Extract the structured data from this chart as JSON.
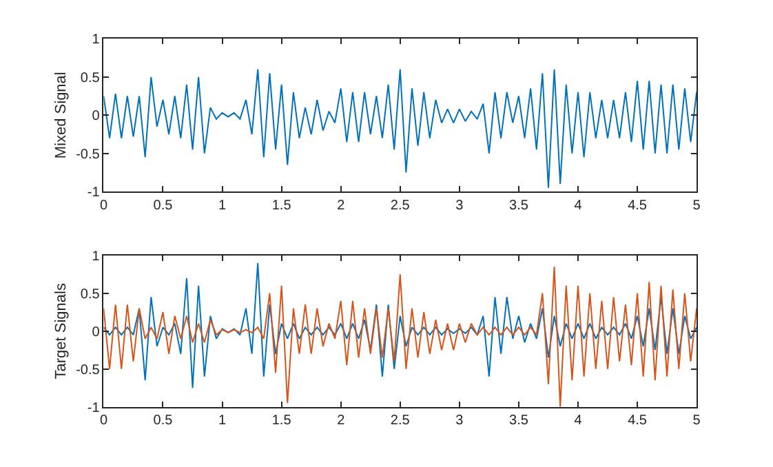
{
  "chart_data": [
    {
      "type": "line",
      "ylabel": "Mixed Signal",
      "xlim": [
        0,
        5
      ],
      "ylim": [
        -1,
        1
      ],
      "xticks": [
        0,
        0.5,
        1,
        1.5,
        2,
        2.5,
        3,
        3.5,
        4,
        4.5,
        5
      ],
      "yticks": [
        -1,
        -0.5,
        0,
        0.5,
        1
      ],
      "x": [
        0,
        0.05,
        0.1,
        0.15,
        0.2,
        0.25,
        0.3,
        0.35,
        0.4,
        0.45,
        0.5,
        0.55,
        0.6,
        0.65,
        0.7,
        0.75,
        0.8,
        0.85,
        0.9,
        0.95,
        1,
        1.05,
        1.1,
        1.15,
        1.2,
        1.25,
        1.3,
        1.35,
        1.4,
        1.45,
        1.5,
        1.55,
        1.6,
        1.65,
        1.7,
        1.75,
        1.8,
        1.85,
        1.9,
        1.95,
        2,
        2.05,
        2.1,
        2.15,
        2.2,
        2.25,
        2.3,
        2.35,
        2.4,
        2.45,
        2.5,
        2.55,
        2.6,
        2.65,
        2.7,
        2.75,
        2.8,
        2.85,
        2.9,
        2.95,
        3,
        3.05,
        3.1,
        3.15,
        3.2,
        3.25,
        3.3,
        3.35,
        3.4,
        3.45,
        3.5,
        3.55,
        3.6,
        3.65,
        3.7,
        3.75,
        3.8,
        3.85,
        3.9,
        3.95,
        4,
        4.05,
        4.1,
        4.15,
        4.2,
        4.25,
        4.3,
        4.35,
        4.4,
        4.45,
        4.5,
        4.55,
        4.6,
        4.65,
        4.7,
        4.75,
        4.8,
        4.85,
        4.9,
        4.95,
        5
      ],
      "series": [
        {
          "color": "#0072bd",
          "values": [
            0.25,
            -0.3,
            0.28,
            -0.3,
            0.25,
            -0.28,
            0.25,
            -0.55,
            0.5,
            -0.15,
            0.2,
            -0.25,
            0.25,
            -0.3,
            0.4,
            -0.45,
            0.5,
            -0.5,
            0.1,
            -0.05,
            0.03,
            -0.02,
            0.03,
            -0.05,
            0.2,
            -0.25,
            0.6,
            -0.55,
            0.55,
            -0.45,
            0.4,
            -0.65,
            0.3,
            -0.3,
            0.1,
            -0.25,
            0.2,
            -0.2,
            0.05,
            -0.1,
            0.35,
            -0.35,
            0.3,
            -0.35,
            0.3,
            -0.25,
            0.25,
            -0.3,
            0.4,
            -0.45,
            0.6,
            -0.75,
            0.35,
            -0.4,
            0.3,
            -0.3,
            0.2,
            -0.1,
            0.08,
            -0.1,
            0.08,
            -0.08,
            0.05,
            -0.05,
            0.15,
            -0.5,
            0.3,
            -0.3,
            0.3,
            -0.1,
            0.25,
            -0.3,
            0.35,
            -0.45,
            0.55,
            -0.95,
            0.6,
            -0.9,
            0.4,
            -0.5,
            0.3,
            -0.55,
            0.3,
            -0.3,
            0.2,
            -0.3,
            0.2,
            -0.3,
            0.3,
            -0.35,
            0.45,
            -0.45,
            0.45,
            -0.5,
            0.4,
            -0.5,
            0.4,
            -0.45,
            0.35,
            -0.35,
            0.3
          ]
        }
      ]
    },
    {
      "type": "line",
      "ylabel": "Target Signals",
      "xlim": [
        0,
        5
      ],
      "ylim": [
        -1,
        1
      ],
      "xticks": [
        0,
        0.5,
        1,
        1.5,
        2,
        2.5,
        3,
        3.5,
        4,
        4.5,
        5
      ],
      "yticks": [
        -1,
        -0.5,
        0,
        0.5,
        1
      ],
      "x": [
        0,
        0.05,
        0.1,
        0.15,
        0.2,
        0.25,
        0.3,
        0.35,
        0.4,
        0.45,
        0.5,
        0.55,
        0.6,
        0.65,
        0.7,
        0.75,
        0.8,
        0.85,
        0.9,
        0.95,
        1,
        1.05,
        1.1,
        1.15,
        1.2,
        1.25,
        1.3,
        1.35,
        1.4,
        1.45,
        1.5,
        1.55,
        1.6,
        1.65,
        1.7,
        1.75,
        1.8,
        1.85,
        1.9,
        1.95,
        2,
        2.05,
        2.1,
        2.15,
        2.2,
        2.25,
        2.3,
        2.35,
        2.4,
        2.45,
        2.5,
        2.55,
        2.6,
        2.65,
        2.7,
        2.75,
        2.8,
        2.85,
        2.9,
        2.95,
        3,
        3.05,
        3.1,
        3.15,
        3.2,
        3.25,
        3.3,
        3.35,
        3.4,
        3.45,
        3.5,
        3.55,
        3.6,
        3.65,
        3.7,
        3.75,
        3.8,
        3.85,
        3.9,
        3.95,
        4,
        4.05,
        4.1,
        4.15,
        4.2,
        4.25,
        4.3,
        4.35,
        4.4,
        4.45,
        4.5,
        4.55,
        4.6,
        4.65,
        4.7,
        4.75,
        4.8,
        4.85,
        4.9,
        4.95,
        5
      ],
      "series": [
        {
          "color": "#0072bd",
          "values": [
            0.05,
            -0.05,
            0.05,
            -0.05,
            0.05,
            -0.05,
            0.3,
            -0.65,
            0.45,
            -0.2,
            0.05,
            -0.05,
            0.1,
            -0.3,
            0.7,
            -0.75,
            0.6,
            -0.6,
            0.2,
            -0.1,
            0.03,
            -0.02,
            0.03,
            -0.05,
            0.3,
            -0.3,
            0.9,
            -0.6,
            0.35,
            -0.3,
            0.1,
            -0.1,
            0.1,
            -0.1,
            0.05,
            -0.05,
            0.05,
            -0.05,
            0.05,
            -0.05,
            0.1,
            -0.1,
            0.1,
            -0.1,
            0.15,
            -0.25,
            0.35,
            -0.6,
            0.35,
            -0.5,
            0.2,
            -0.2,
            0.05,
            -0.05,
            0.05,
            -0.05,
            0.05,
            -0.05,
            0.03,
            -0.03,
            0.03,
            -0.03,
            0.05,
            -0.05,
            0.2,
            -0.6,
            0.45,
            -0.3,
            0.45,
            -0.1,
            0.2,
            -0.15,
            0.1,
            -0.1,
            0.3,
            -0.35,
            0.2,
            -0.2,
            0.1,
            -0.1,
            0.1,
            -0.1,
            0.1,
            -0.1,
            0.05,
            -0.05,
            0.05,
            -0.05,
            0.1,
            -0.1,
            0.2,
            -0.2,
            0.3,
            -0.25,
            0.45,
            -0.3,
            0.3,
            -0.3,
            0.2,
            -0.1,
            0.05
          ]
        },
        {
          "color": "#d95319",
          "values": [
            0.3,
            -0.5,
            0.35,
            -0.5,
            0.35,
            -0.4,
            0.3,
            -0.1,
            0.05,
            -0.1,
            0.25,
            -0.3,
            0.2,
            -0.1,
            0.2,
            -0.15,
            0.1,
            -0.15,
            0.15,
            -0.05,
            0.02,
            -0.02,
            0.02,
            -0.02,
            0.02,
            -0.02,
            0.05,
            -0.1,
            0.5,
            -0.55,
            0.6,
            -0.95,
            0.3,
            -0.3,
            0.35,
            -0.3,
            0.3,
            -0.2,
            0.1,
            -0.1,
            0.4,
            -0.45,
            0.4,
            -0.35,
            0.3,
            -0.3,
            0.3,
            -0.35,
            0.3,
            -0.4,
            0.75,
            -0.5,
            0.3,
            -0.35,
            0.25,
            -0.3,
            0.15,
            -0.25,
            0.1,
            -0.25,
            0.1,
            -0.15,
            0.1,
            -0.05,
            0.05,
            -0.05,
            0.05,
            -0.05,
            0.05,
            -0.05,
            0.05,
            -0.05,
            0.05,
            -0.05,
            0.5,
            -0.7,
            0.85,
            -1.0,
            0.6,
            -0.65,
            0.6,
            -0.6,
            0.5,
            -0.5,
            0.4,
            -0.5,
            0.45,
            -0.4,
            0.35,
            -0.45,
            0.5,
            -0.6,
            0.65,
            -0.65,
            0.6,
            -0.6,
            0.55,
            -0.5,
            0.5,
            -0.4,
            0.3
          ]
        }
      ]
    }
  ]
}
